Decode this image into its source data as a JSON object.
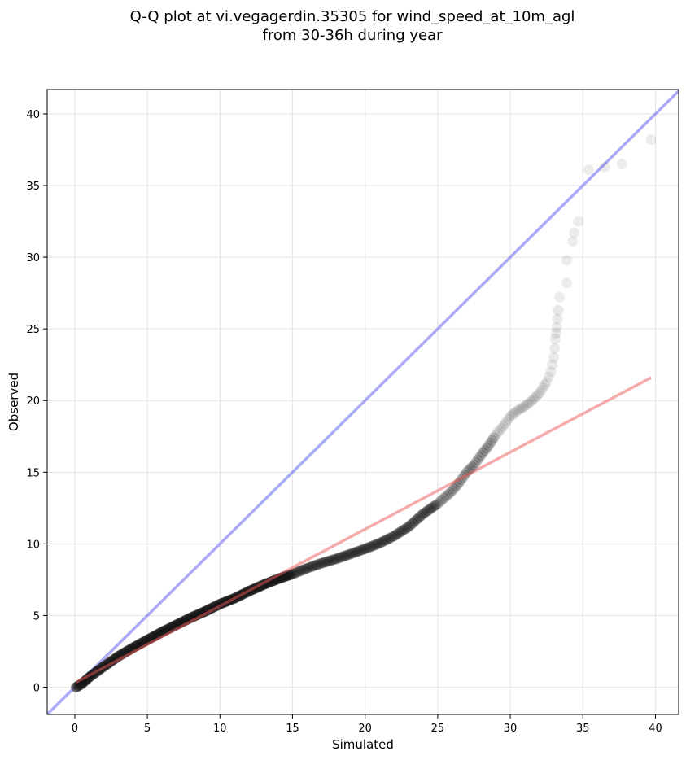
{
  "chart_data": {
    "type": "scatter",
    "title_lines": [
      "Q-Q plot at vi.vegagerdin.35305 for wind_speed_at_10m_agl",
      "from 30-36h during year"
    ],
    "xlabel": "Simulated",
    "ylabel": "Observed",
    "xlim": [
      -1.9,
      41.6
    ],
    "ylim": [
      -1.9,
      41.7
    ],
    "xticks": [
      0,
      5,
      10,
      15,
      20,
      25,
      30,
      35,
      40
    ],
    "yticks": [
      0,
      5,
      10,
      15,
      20,
      25,
      30,
      35,
      40
    ],
    "grid": true,
    "identity_line": {
      "color": "#5555ee"
    },
    "fit_line": {
      "color": "#ee5555",
      "points": [
        [
          0.1,
          0.35
        ],
        [
          39.7,
          21.6
        ]
      ]
    },
    "point_color": "#111111",
    "curve_points": [
      [
        0.1,
        0.0
      ],
      [
        0.5,
        0.25
      ],
      [
        1.0,
        0.7
      ],
      [
        2.0,
        1.45
      ],
      [
        3.0,
        2.15
      ],
      [
        4.0,
        2.75
      ],
      [
        5.0,
        3.3
      ],
      [
        6.0,
        3.85
      ],
      [
        7.0,
        4.35
      ],
      [
        8.0,
        4.85
      ],
      [
        9.0,
        5.3
      ],
      [
        10.0,
        5.8
      ],
      [
        11.0,
        6.2
      ],
      [
        12.0,
        6.7
      ],
      [
        13.0,
        7.15
      ],
      [
        14.0,
        7.55
      ],
      [
        15.0,
        7.9
      ],
      [
        16.0,
        8.3
      ],
      [
        17.0,
        8.65
      ],
      [
        18.0,
        8.95
      ],
      [
        19.0,
        9.3
      ],
      [
        20.0,
        9.65
      ],
      [
        21.0,
        10.05
      ],
      [
        22.0,
        10.55
      ],
      [
        23.0,
        11.2
      ],
      [
        24.0,
        12.1
      ],
      [
        25.0,
        12.8
      ],
      [
        26.0,
        13.7
      ],
      [
        26.5,
        14.3
      ],
      [
        27.0,
        15.0
      ],
      [
        27.5,
        15.5
      ],
      [
        28.0,
        16.2
      ],
      [
        28.5,
        16.85
      ],
      [
        29.0,
        17.6
      ],
      [
        29.5,
        18.2
      ],
      [
        30.0,
        18.9
      ],
      [
        30.5,
        19.3
      ],
      [
        31.0,
        19.6
      ],
      [
        31.5,
        20.0
      ],
      [
        32.0,
        20.5
      ],
      [
        32.5,
        21.3
      ],
      [
        32.8,
        22.0
      ],
      [
        33.0,
        23.0
      ],
      [
        33.1,
        24.3
      ],
      [
        33.2,
        25.1
      ],
      [
        33.3,
        26.3
      ]
    ],
    "tail_points": [
      [
        33.4,
        27.2
      ],
      [
        33.9,
        28.2
      ],
      [
        33.9,
        29.8
      ],
      [
        34.3,
        31.1
      ],
      [
        34.4,
        31.7
      ],
      [
        34.7,
        32.5
      ],
      [
        35.4,
        36.1
      ],
      [
        36.5,
        36.3
      ],
      [
        37.7,
        36.5
      ],
      [
        39.7,
        38.2
      ]
    ]
  }
}
